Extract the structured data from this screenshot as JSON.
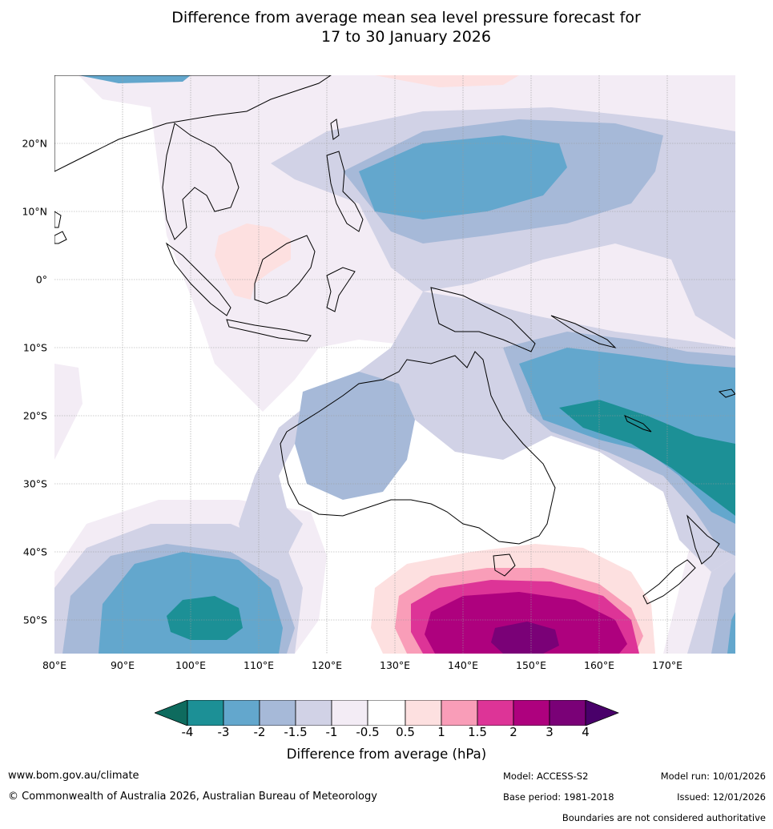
{
  "title_line1": "Difference from average mean sea level pressure forecast for",
  "title_line2": "17 to 30 January 2026",
  "map": {
    "lat_labels": [
      "20°N",
      "10°N",
      "0°",
      "10°S",
      "20°S",
      "30°S",
      "40°S",
      "50°S"
    ],
    "lon_labels": [
      "80°E",
      "90°E",
      "100°E",
      "110°E",
      "120°E",
      "130°E",
      "140°E",
      "150°E",
      "160°E",
      "170°E"
    ]
  },
  "colorbar": {
    "title": "Difference from average (hPa)",
    "ticks": [
      "-4",
      "-3",
      "-2",
      "-1.5",
      "-1",
      "-0.5",
      "0.5",
      "1",
      "1.5",
      "2",
      "3",
      "4"
    ],
    "colors": [
      "#0e6b5e",
      "#1c9096",
      "#63a7cd",
      "#a6b9d8",
      "#d1d2e6",
      "#f3ecf5",
      "#ffffff",
      "#fde0e0",
      "#f99db8",
      "#dd3497",
      "#ae017e",
      "#7a0177",
      "#49006a"
    ]
  },
  "footer": {
    "website": "www.bom.gov.au/climate",
    "copyright": "© Commonwealth of Australia 2026, Australian Bureau of Meteorology",
    "model": "Model: ACCESS-S2",
    "base_period": "Base period: 1981-2018",
    "model_run": "Model run: 10/01/2026",
    "issued": "Issued: 12/01/2026",
    "disclaimer": "Boundaries are not considered authoritative"
  }
}
